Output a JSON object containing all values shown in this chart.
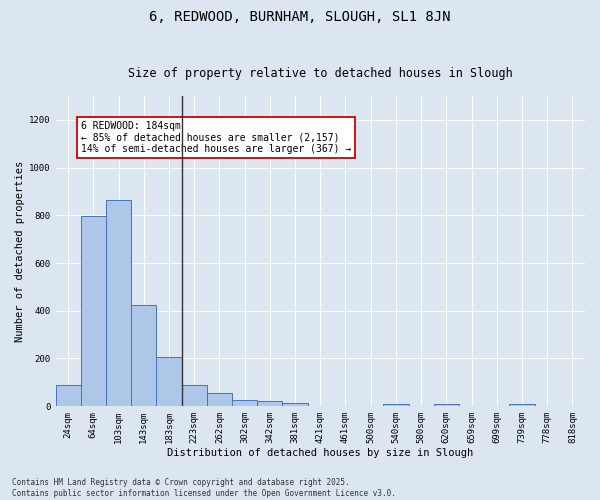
{
  "title": "6, REDWOOD, BURNHAM, SLOUGH, SL1 8JN",
  "subtitle": "Size of property relative to detached houses in Slough",
  "xlabel": "Distribution of detached houses by size in Slough",
  "ylabel": "Number of detached properties",
  "categories": [
    "24sqm",
    "64sqm",
    "103sqm",
    "143sqm",
    "183sqm",
    "223sqm",
    "262sqm",
    "302sqm",
    "342sqm",
    "381sqm",
    "421sqm",
    "461sqm",
    "500sqm",
    "540sqm",
    "580sqm",
    "620sqm",
    "659sqm",
    "699sqm",
    "739sqm",
    "778sqm",
    "818sqm"
  ],
  "values": [
    90,
    795,
    865,
    425,
    205,
    90,
    55,
    25,
    20,
    15,
    0,
    0,
    0,
    10,
    0,
    10,
    0,
    0,
    10,
    0,
    0
  ],
  "bar_color": "#aec6e8",
  "bar_edge_color": "#4472c4",
  "vline_index": 4,
  "vline_color": "#333333",
  "annotation_text": "6 REDWOOD: 184sqm\n← 85% of detached houses are smaller (2,157)\n14% of semi-detached houses are larger (367) →",
  "annotation_box_color": "#ffffff",
  "annotation_box_edge": "#cc0000",
  "ylim": [
    0,
    1300
  ],
  "yticks": [
    0,
    200,
    400,
    600,
    800,
    1000,
    1200
  ],
  "background_color": "#dce6f1",
  "plot_bg_color": "#dce6f1",
  "grid_color": "#ffffff",
  "footer": "Contains HM Land Registry data © Crown copyright and database right 2025.\nContains public sector information licensed under the Open Government Licence v3.0.",
  "title_fontsize": 10,
  "subtitle_fontsize": 8.5,
  "label_fontsize": 7.5,
  "tick_fontsize": 6.5,
  "annotation_fontsize": 7,
  "footer_fontsize": 5.5
}
